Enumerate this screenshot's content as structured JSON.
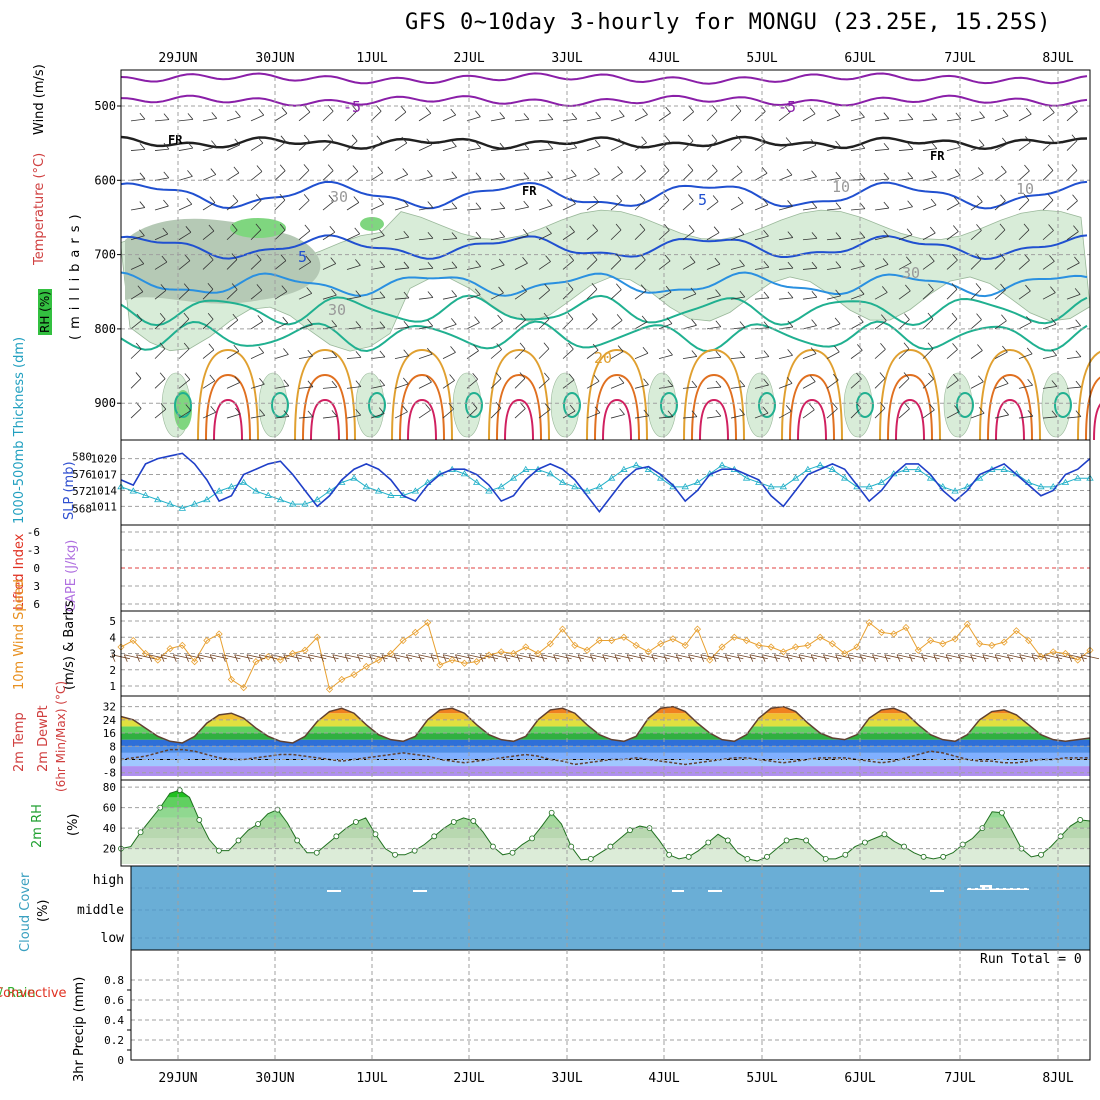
{
  "header": {
    "title": "GFS 0~10day 3-hourly for MONGU (23.25E, 15.25S)"
  },
  "dates": [
    "29JUN",
    "30JUN",
    "1JUL",
    "2JUL",
    "3JUL",
    "4JUL",
    "5JUL",
    "6JUL",
    "7JUL",
    "8JUL"
  ],
  "panels": {
    "upper": {
      "ylabel_wind": "Wind (m/s)",
      "ylabel_temp": "Temperature (°C)",
      "ylabel_rh": "RH (%)",
      "ylabel_units": "(millibars)",
      "ticks": [
        "500",
        "600",
        "700",
        "800",
        "900"
      ],
      "contour_labels": [
        "-5",
        "-5",
        "FR",
        "FR",
        "FR",
        "5",
        "5",
        "10",
        "10",
        "20",
        "30",
        "30",
        "30"
      ]
    },
    "slp": {
      "ylabel_thk": "1000-500mb Thickness (dm)",
      "ylabel_slp": "SLP (mb)",
      "thk_ticks": [
        "580",
        "576",
        "572",
        "568"
      ],
      "slp_ticks": [
        "1020",
        "1017",
        "1014",
        "1011"
      ],
      "colors": {
        "slp": "#1f3fc8",
        "thickness": "#22b0c8"
      }
    },
    "li": {
      "ylabel_li": "Lifted Index",
      "ylabel_cape": "CAPE (J/kg)",
      "ticks": [
        "-6",
        "-3",
        "0",
        "3",
        "6"
      ]
    },
    "wind": {
      "ylabel": "10m Wind Speed",
      "ylabel2": "(m/s) & Barbs",
      "ticks": [
        "5",
        "4",
        "3",
        "2",
        "1"
      ],
      "color": "#e8a030"
    },
    "temp": {
      "ylabel1": "2m Temp",
      "ylabel2": "2m DewPt",
      "ylabel3": "(6hr Min/Max) (°C)",
      "ticks": [
        "32",
        "24",
        "16",
        "8",
        "0",
        "-8"
      ]
    },
    "rh2": {
      "ylabel": "2m RH",
      "units": "(%)",
      "ticks": [
        "80",
        "60",
        "40",
        "20"
      ]
    },
    "cloud": {
      "ylabel": "Cloud Cover",
      "units": "(%)",
      "levels": [
        "high",
        "middle",
        "low"
      ],
      "color": "#6aaed6"
    },
    "precip": {
      "ylabel_total": "Total / Rain",
      "ylabel_conv": "Convective",
      "ylabel": "3hr Precip (mm)",
      "ticks": [
        "0.8",
        "0.6",
        "0.4",
        "0.2",
        "0"
      ],
      "run_total": "Run Total = 0"
    }
  },
  "chart_data": [
    {
      "type": "line",
      "title": "1000-500mb Thickness (dm) / SLP (mb)",
      "x_start": "28JUN 12Z",
      "x_step_hours": 3,
      "series": [
        {
          "name": "SLP (mb)",
          "ylim": [
            1009,
            1022
          ],
          "values": [
            1016,
            1015,
            1019,
            1020,
            1020.5,
            1021,
            1019,
            1016,
            1012,
            1013,
            1017,
            1018,
            1019,
            1019.5,
            1017,
            1014,
            1011,
            1013,
            1016,
            1018,
            1019,
            1018,
            1016,
            1013,
            1012,
            1015,
            1017,
            1018,
            1018,
            1017,
            1015,
            1012,
            1013,
            1016,
            1018,
            1019,
            1018,
            1016,
            1013,
            1010,
            1013,
            1016,
            1018,
            1018.5,
            1017,
            1015,
            1012,
            1014,
            1017,
            1018,
            1018,
            1017,
            1016,
            1013,
            1011,
            1014,
            1017,
            1018,
            1019,
            1018,
            1015,
            1012,
            1014,
            1017,
            1019,
            1019,
            1017,
            1014,
            1012,
            1014,
            1017,
            1018,
            1019,
            1017,
            1015,
            1013,
            1014,
            1017,
            1018,
            1020
          ]
        },
        {
          "name": "1000-500mb Thickness (dm)",
          "ylim": [
            566,
            582
          ],
          "values": [
            573,
            572,
            571,
            570,
            569,
            568,
            569,
            570,
            572,
            573,
            574,
            572,
            571,
            570,
            569,
            569,
            570,
            572,
            574,
            575,
            573,
            572,
            571,
            571,
            572,
            574,
            576,
            577,
            576,
            574,
            572,
            573,
            575,
            577,
            577,
            576,
            574,
            573,
            572,
            573,
            575,
            577,
            578,
            577,
            575,
            573,
            573,
            574,
            576,
            578,
            577,
            575,
            574,
            573,
            573,
            575,
            577,
            578,
            577,
            575,
            573,
            573,
            574,
            576,
            577,
            577,
            575,
            573,
            572,
            573,
            575,
            577,
            577,
            576,
            574,
            573,
            573,
            574,
            575,
            575
          ]
        }
      ]
    },
    {
      "type": "line",
      "title": "10m Wind Speed (m/s)",
      "ylim": [
        0.6,
        5.2
      ],
      "x_start": "28JUN 12Z",
      "x_step_hours": 3,
      "series": [
        {
          "name": "10m Wind Speed",
          "values": [
            3.4,
            3.8,
            3.0,
            2.6,
            3.3,
            3.5,
            2.5,
            3.8,
            4.2,
            1.4,
            0.9,
            2.5,
            2.8,
            2.6,
            3.0,
            3.2,
            4.0,
            0.8,
            1.4,
            1.7,
            2.2,
            2.6,
            3.0,
            3.8,
            4.3,
            4.9,
            2.3,
            2.6,
            2.4,
            2.5,
            2.9,
            3.1,
            3.0,
            3.4,
            3.0,
            3.6,
            4.5,
            3.5,
            3.2,
            3.8,
            3.8,
            4.0,
            3.5,
            3.1,
            3.6,
            3.9,
            3.5,
            4.5,
            2.6,
            3.4,
            4.0,
            3.8,
            3.5,
            3.4,
            3.1,
            3.4,
            3.5,
            4.0,
            3.6,
            3.0,
            3.4,
            4.9,
            4.3,
            4.2,
            4.6,
            3.2,
            3.8,
            3.6,
            3.9,
            4.8,
            3.6,
            3.5,
            3.7,
            4.4,
            3.8,
            2.8,
            3.1,
            3.0,
            2.6,
            3.2
          ]
        }
      ]
    },
    {
      "type": "area",
      "title": "2m Temp / 2m DewPt (°C)",
      "ylim": [
        -10,
        36
      ],
      "x_start": "28JUN 12Z",
      "x_step_hours": 3,
      "series": [
        {
          "name": "2m Temp",
          "values": [
            26,
            24,
            19,
            14,
            11,
            10,
            14,
            22,
            27,
            28,
            25,
            19,
            14,
            11,
            10,
            14,
            23,
            29,
            31,
            28,
            21,
            15,
            12,
            11,
            14,
            24,
            30,
            31,
            28,
            21,
            15,
            12,
            11,
            14,
            24,
            30,
            31,
            28,
            21,
            15,
            12,
            11,
            14,
            25,
            31,
            32,
            29,
            22,
            16,
            12,
            11,
            15,
            25,
            31,
            32,
            29,
            22,
            16,
            13,
            12,
            15,
            25,
            30,
            31,
            28,
            21,
            15,
            12,
            11,
            15,
            24,
            29,
            30,
            27,
            21,
            15,
            12,
            11,
            12,
            13
          ]
        },
        {
          "name": "2m DewPt",
          "values": [
            0,
            1,
            2,
            4,
            6,
            6,
            5,
            3,
            1,
            0,
            0,
            1,
            2,
            3,
            3,
            2,
            1,
            0,
            -1,
            0,
            1,
            2,
            3,
            4,
            3,
            2,
            0,
            -1,
            -2,
            -1,
            0,
            1,
            2,
            3,
            2,
            0,
            -1,
            -3,
            -2,
            -1,
            0,
            0,
            1,
            0,
            -1,
            -2,
            -3,
            -2,
            -1,
            0,
            1,
            1,
            0,
            -1,
            -2,
            -1,
            0,
            1,
            1,
            1,
            0,
            -1,
            -2,
            -1,
            1,
            3,
            5,
            4,
            2,
            0,
            -1,
            -1,
            -2,
            -2,
            -1,
            0,
            0,
            1,
            1,
            1
          ]
        }
      ]
    },
    {
      "type": "area",
      "title": "2m RH (%)",
      "ylim": [
        5,
        85
      ],
      "x_start": "28JUN 12Z",
      "x_step_hours": 3,
      "series": [
        {
          "name": "2m RH",
          "values": [
            20,
            22,
            36,
            48,
            60,
            74,
            77,
            70,
            48,
            29,
            18,
            18,
            28,
            38,
            44,
            54,
            58,
            45,
            28,
            16,
            16,
            24,
            32,
            40,
            46,
            50,
            34,
            20,
            14,
            14,
            18,
            24,
            32,
            40,
            46,
            50,
            47,
            36,
            22,
            14,
            16,
            24,
            30,
            42,
            55,
            44,
            22,
            9,
            10,
            16,
            22,
            30,
            38,
            42,
            40,
            28,
            14,
            10,
            12,
            18,
            26,
            34,
            28,
            16,
            10,
            8,
            12,
            20,
            28,
            30,
            28,
            18,
            10,
            10,
            14,
            22,
            26,
            30,
            34,
            27,
            22,
            16,
            12,
            10,
            12,
            16,
            24,
            30,
            40,
            56,
            55,
            38,
            20,
            12,
            14,
            22,
            32,
            42,
            48,
            47
          ]
        }
      ]
    }
  ]
}
